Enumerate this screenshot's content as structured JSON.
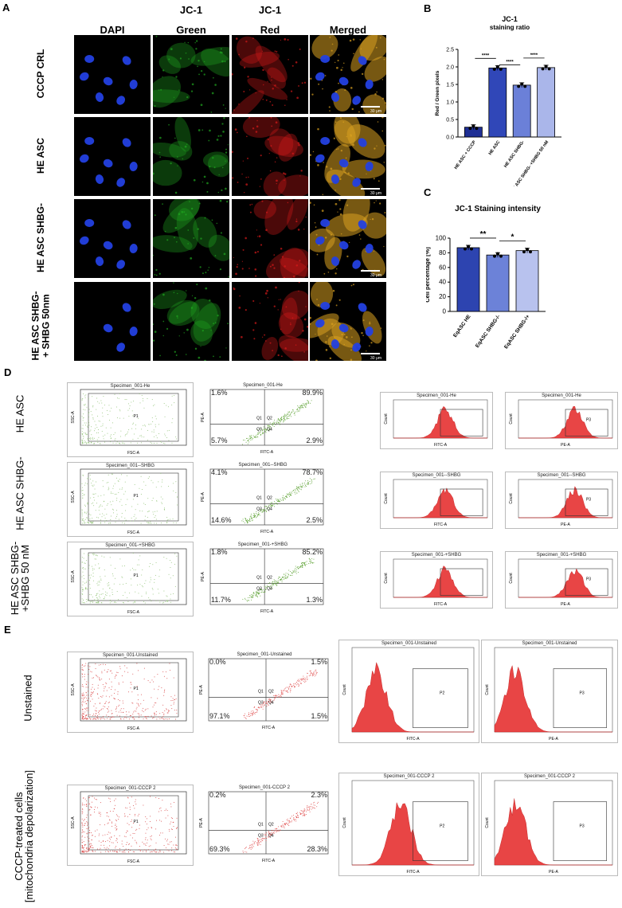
{
  "panel_letters": {
    "a": "A",
    "b": "B",
    "c": "C",
    "d": "D",
    "e": "E"
  },
  "panel_a": {
    "columns": [
      {
        "line1": "",
        "line2": "DAPI"
      },
      {
        "line1": "JC-1",
        "line2": "Green"
      },
      {
        "line1": "JC-1",
        "line2": "Red"
      },
      {
        "line1": "",
        "line2": "Merged"
      }
    ],
    "rows": [
      "CCCP CRL",
      "HE ASC",
      "HE ASC SHBG-",
      "HE ASC SHBG-\n+ SHBG 50nm"
    ],
    "scale_text": "30 μm",
    "colors": {
      "dapi": "#1a2fd8",
      "green": "#1fa51f",
      "red": "#d61a1a",
      "merged": "#d8a020"
    }
  },
  "chart_data": [
    {
      "type": "bar",
      "title": "JC-1",
      "subtitle": "staining ratio",
      "ylabel": "Red / Green pixels",
      "xlabel": "",
      "ylim": [
        0,
        2.5
      ],
      "yticks": [
        "0.0",
        "0.5",
        "1.0",
        "1.5",
        "2.0",
        "2.5"
      ],
      "categories": [
        "HE ASC + CCCP",
        "HE ASC",
        "HE ASC SHBG-",
        "HE ASC SHBG- +SHBG 50 nM"
      ],
      "values": [
        0.28,
        1.97,
        1.48,
        1.98
      ],
      "colors": [
        "#1f2f95",
        "#3047b8",
        "#6b80d8",
        "#aab6ea"
      ],
      "significance": [
        {
          "from": 0,
          "to": 1,
          "label": "****"
        },
        {
          "from": 1,
          "to": 2,
          "label": "****"
        },
        {
          "from": 2,
          "to": 3,
          "label": "****"
        }
      ]
    },
    {
      "type": "bar",
      "title": "JC-1 Staining intensity",
      "ylabel": "Cell percentage [%]",
      "xlabel": "",
      "ylim": [
        0,
        100
      ],
      "yticks": [
        "0",
        "20",
        "40",
        "60",
        "80",
        "100"
      ],
      "categories": [
        "EqASC HE",
        "EqASC SHBG-/-",
        "EqASC SHBG-/+"
      ],
      "values": [
        87,
        77,
        83
      ],
      "colors": [
        "#2d44b0",
        "#6c82d8",
        "#b8c2ee"
      ],
      "significance": [
        {
          "from": 0,
          "to": 1,
          "label": "**"
        },
        {
          "from": 1,
          "to": 2,
          "label": "*"
        }
      ]
    }
  ],
  "panel_d": {
    "rows": [
      {
        "label": "HE ASC",
        "scatter_title": "Specimen_001-He",
        "quad_title": "Specimen_001-He",
        "q1": "1.6%",
        "q2": "89.9%",
        "q3": "5.7%",
        "q4": "2.9%",
        "hist1_title": "Specimen_001-He",
        "hist2_title": "Specimen_001-He"
      },
      {
        "label": "HE ASC SHBG-",
        "scatter_title": "Specimen_001--SHBG",
        "quad_title": "Specimen_001--SHBG",
        "q1": "4.1%",
        "q2": "78.7%",
        "q3": "14.6%",
        "q4": "2.5%",
        "hist1_title": "Specimen_001--SHBG",
        "hist2_title": "Specimen_001--SHBG"
      },
      {
        "label": "HE ASC SHBG-\n+SHBG 50 nM",
        "scatter_title": "Specimen_001-+SHBG",
        "quad_title": "Specimen_001-+SHBG",
        "q1": "1.8%",
        "q2": "85.2%",
        "q3": "11.7%",
        "q4": "1.3%",
        "hist1_title": "Specimen_001-+SHBG",
        "hist2_title": "Specimen_001-+SHBG"
      }
    ]
  },
  "panel_e": {
    "rows": [
      {
        "label": "Unstained",
        "scatter_title": "Specimen_001-Unstained",
        "quad_title": "Specimen_001-Unstained",
        "q1": "0.0%",
        "q2": "1.5%",
        "q3": "97.1%",
        "q4": "1.5%",
        "hist1_title": "Specimen_001-Unstained",
        "hist2_title": "Specimen_001-Unstained"
      },
      {
        "label": "CCCP-treated cells\n[mitochondria depolarization]",
        "scatter_title": "Specimen_001-CCCP 2",
        "quad_title": "Specimen_001-CCCP 2",
        "q1": "0.2%",
        "q2": "2.3%",
        "q3": "69.3%",
        "q4": "28.3%",
        "hist1_title": "Specimen_001-CCCP 2",
        "hist2_title": "Specimen_001-CCCP 2"
      }
    ]
  },
  "flow_axes": {
    "ssc": "SSC-A",
    "fsc": "FSC-A",
    "pe": "PE-A",
    "fitc": "FITC-A",
    "count": "Count",
    "p1": "P1",
    "p2": "P2",
    "p3": "P3",
    "quadrants": [
      "Q1",
      "Q2",
      "Q3",
      "Q4"
    ]
  }
}
